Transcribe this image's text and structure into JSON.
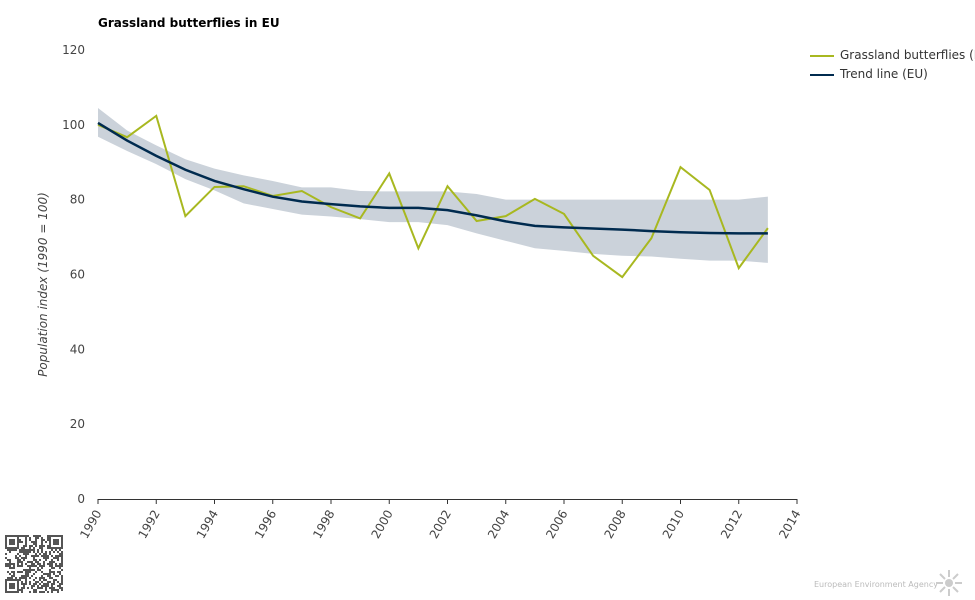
{
  "chart_data": {
    "type": "line",
    "title": "Grassland butterflies in EU",
    "xlabel": "",
    "ylabel": "Population index (1990 = 100)",
    "xlim": [
      1990,
      2014
    ],
    "ylim": [
      0,
      120
    ],
    "xticks": [
      "1990",
      "1992",
      "1994",
      "1996",
      "1998",
      "2000",
      "2002",
      "2004",
      "2006",
      "2008",
      "2010",
      "2012",
      "2014"
    ],
    "yticks": [
      "0",
      "20",
      "40",
      "60",
      "80",
      "100",
      "120"
    ],
    "grid": false,
    "legend_position": "top-right",
    "x": [
      1990,
      1991,
      1992,
      1993,
      1994,
      1995,
      1996,
      1997,
      1998,
      1999,
      2000,
      2001,
      2002,
      2003,
      2004,
      2005,
      2006,
      2007,
      2008,
      2009,
      2010,
      2011,
      2012,
      2013
    ],
    "series": [
      {
        "name": "Grassland butterflies (EU)",
        "color": "#a8b820",
        "values": [
          100,
          96.7,
          102.4,
          75.6,
          83.4,
          83.6,
          81,
          82.3,
          78,
          75,
          87,
          67,
          83.6,
          74.3,
          75.6,
          80.2,
          76.2,
          65,
          59.3,
          69.7,
          88.7,
          82.6,
          61.7,
          72.4
        ]
      },
      {
        "name": "Trend line (EU)",
        "color": "#002b4f",
        "values": [
          100.5,
          95.8,
          91.7,
          88,
          85,
          82.8,
          80.8,
          79.5,
          78.8,
          78.2,
          77.8,
          77.8,
          77.2,
          75.8,
          74.2,
          73,
          72.6,
          72.3,
          72,
          71.6,
          71.3,
          71.1,
          71,
          71
        ]
      }
    ],
    "confidence_band": {
      "color": "#cbd2da",
      "upper": [
        104.5,
        98.5,
        94.5,
        90.8,
        88.3,
        86.5,
        85,
        83.3,
        83.3,
        82.3,
        82.2,
        82.2,
        82.2,
        81.5,
        80,
        80,
        80,
        80,
        80,
        80,
        80,
        80,
        80,
        80.8
      ],
      "lower": [
        96.8,
        93,
        89.5,
        85.5,
        82.5,
        79,
        77.5,
        76,
        75.5,
        74.8,
        74,
        74,
        73.2,
        71,
        69,
        67,
        66.3,
        65.5,
        65,
        64.8,
        64.2,
        63.7,
        63.7,
        63.1
      ]
    }
  },
  "legend": {
    "items": [
      "Grassland butterflies (EU)",
      "Trend line (EU)"
    ]
  },
  "footer": {
    "logo_text": "European Environment Agency"
  }
}
